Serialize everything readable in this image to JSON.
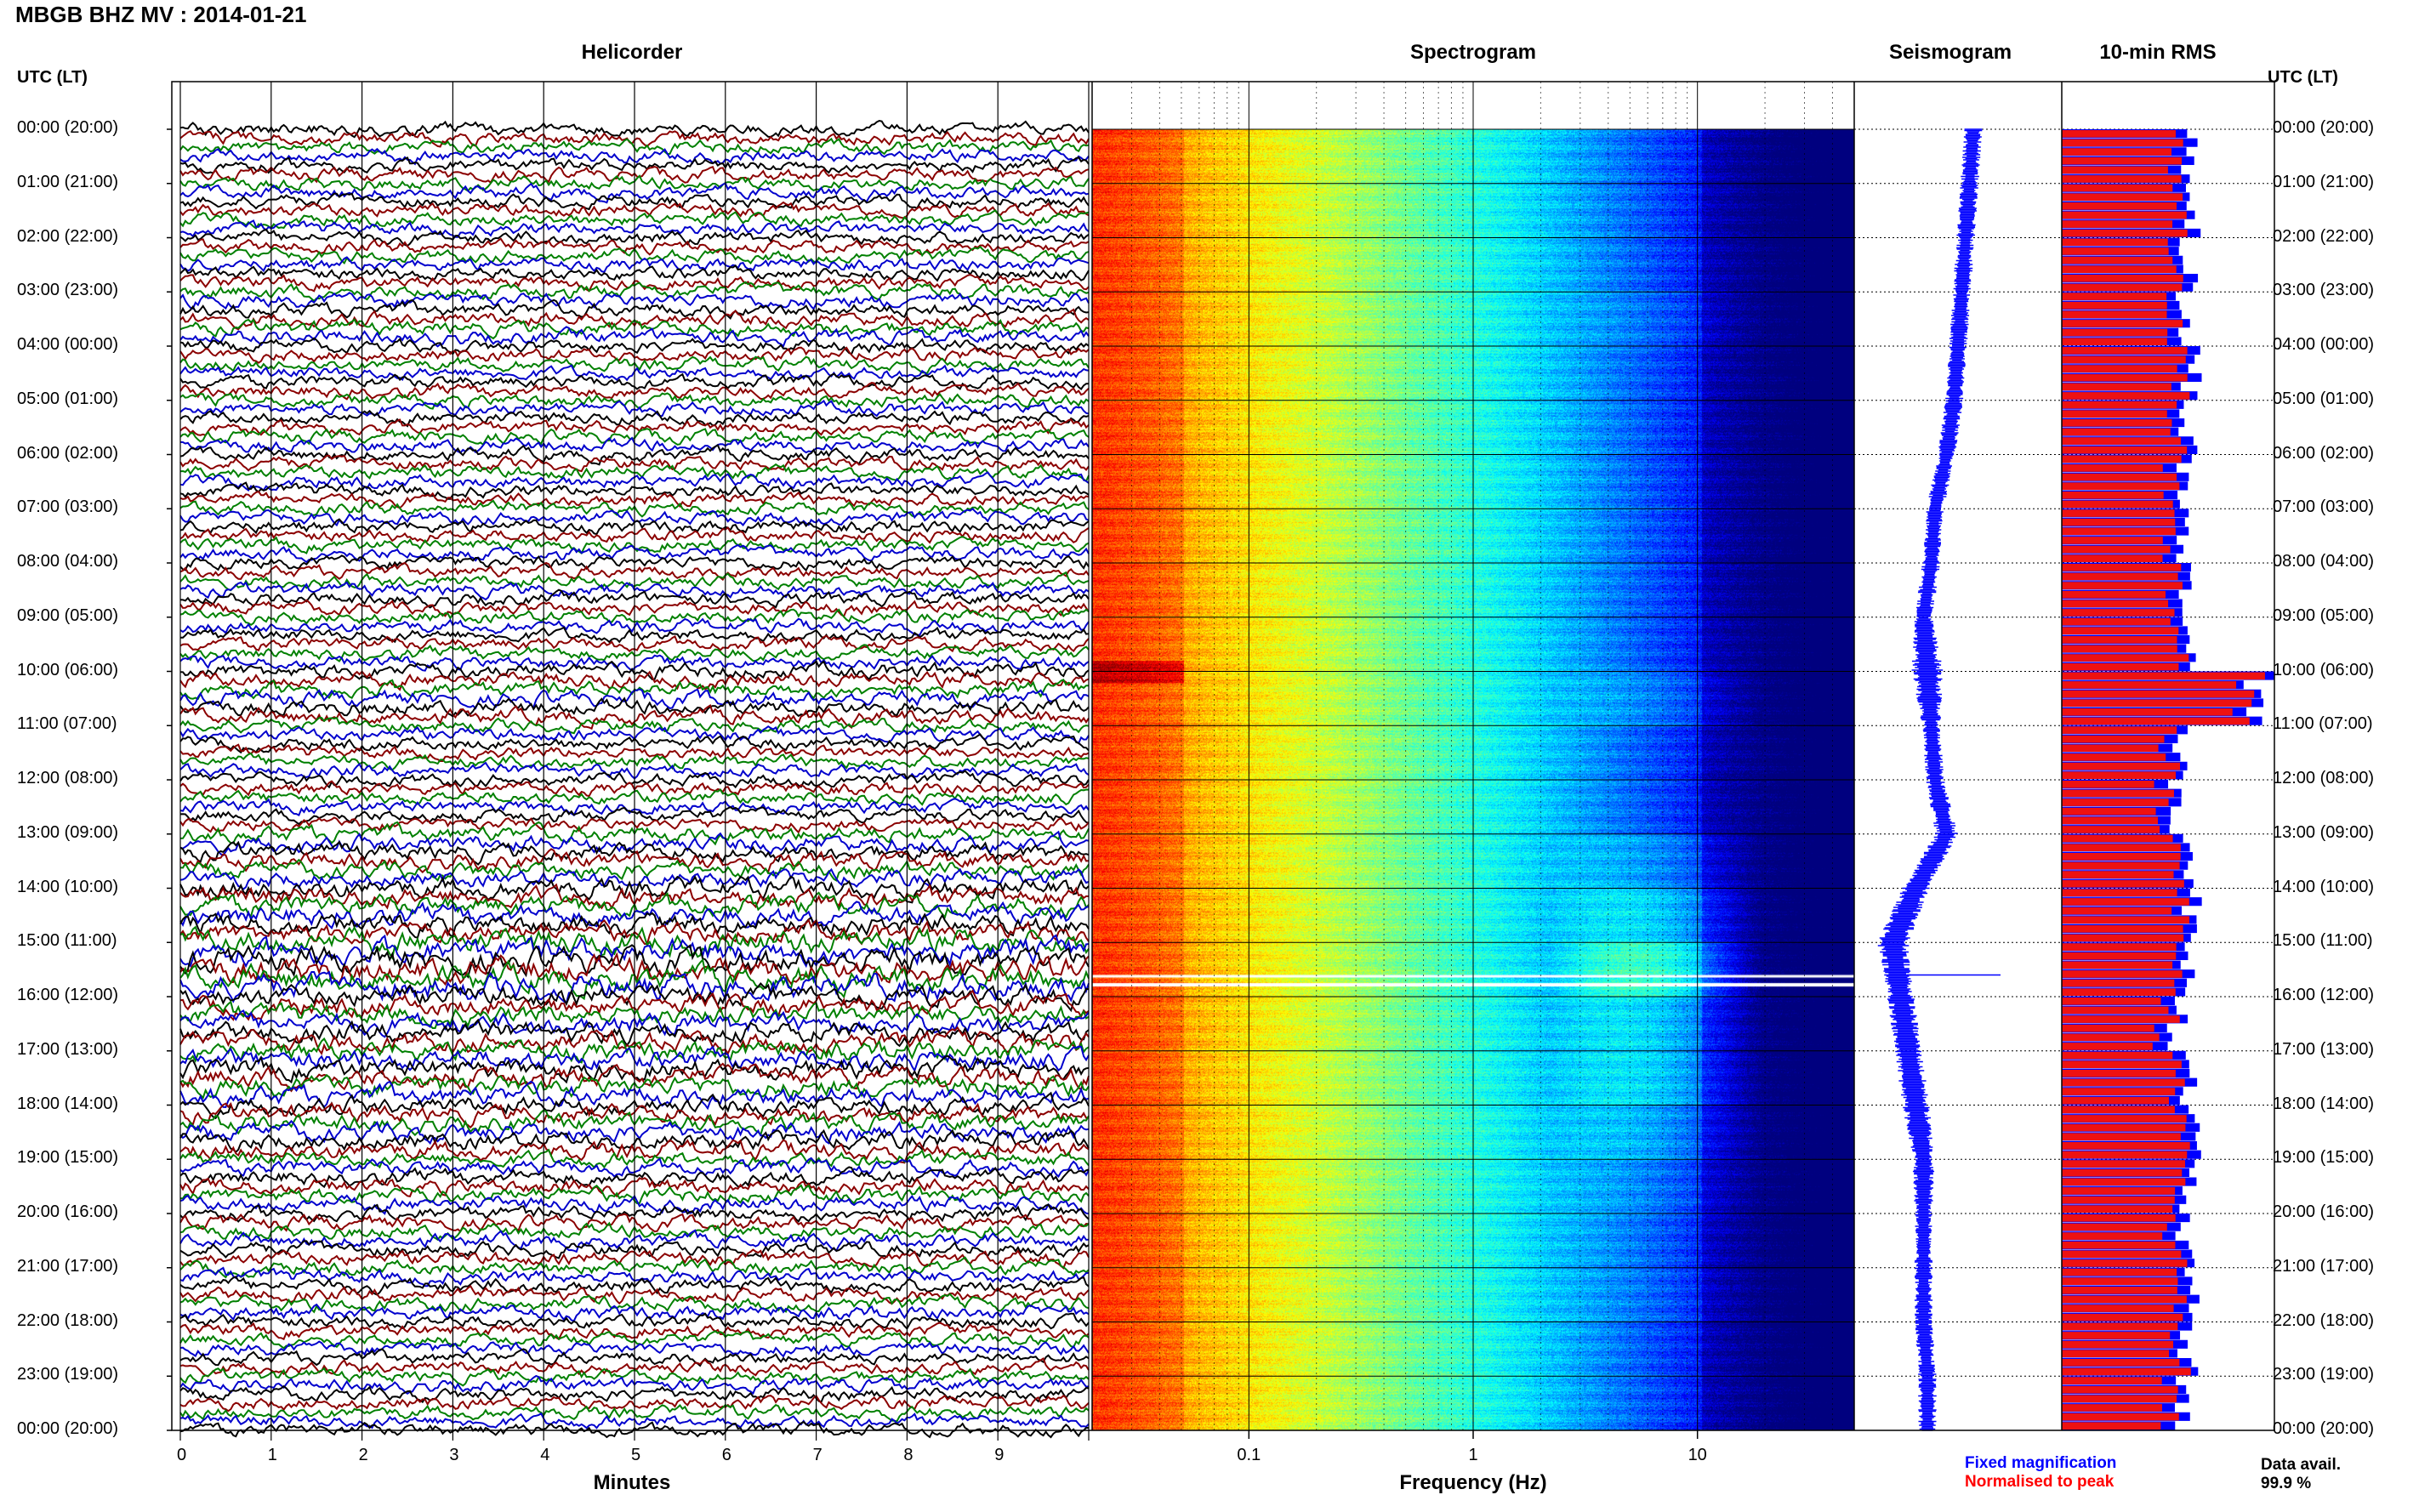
{
  "title": "MBGB BHZ MV : 2014-01-21",
  "panels": {
    "helicorder": "Helicorder",
    "spectrogram": "Spectrogram",
    "seismogram": "Seismogram",
    "rms": "10-min RMS"
  },
  "time_axis_label": "UTC (LT)",
  "x_labels": {
    "helicorder": "Minutes",
    "spectrogram": "Frequency (Hz)"
  },
  "legend": {
    "fixed": "Fixed magnification",
    "normalised": "Normalised to peak",
    "fixed_color": "#0000ff",
    "normalised_color": "#ff0000"
  },
  "data_avail": {
    "label": "Data avail.",
    "value": "99.9 %"
  },
  "colors": {
    "trace_cycle": [
      "#000000",
      "#8b0000",
      "#008000",
      "#0000cd"
    ],
    "seismogram": "#0000ff",
    "rms_fixed": "#0000ff",
    "rms_normalised": "#ee1111"
  },
  "chart_data": [
    {
      "type": "line",
      "name": "helicorder",
      "x_ticks": [
        "0",
        "1",
        "2",
        "3",
        "4",
        "5",
        "6",
        "7",
        "8",
        "9"
      ],
      "xlim": [
        0,
        10
      ],
      "row_minutes": 10,
      "rows": 144,
      "time_labels": [
        "00:00 (20:00)",
        "01:00 (21:00)",
        "02:00 (22:00)",
        "03:00 (23:00)",
        "04:00 (00:00)",
        "05:00 (01:00)",
        "06:00 (02:00)",
        "07:00 (03:00)",
        "08:00 (04:00)",
        "09:00 (05:00)",
        "10:00 (06:00)",
        "11:00 (07:00)",
        "12:00 (08:00)",
        "13:00 (09:00)",
        "14:00 (10:00)",
        "15:00 (11:00)",
        "16:00 (12:00)",
        "17:00 (13:00)",
        "18:00 (14:00)",
        "19:00 (15:00)",
        "20:00 (16:00)",
        "21:00 (17:00)",
        "22:00 (18:00)",
        "23:00 (19:00)",
        "00:00 (20:00)"
      ],
      "hourly_amplitude": [
        1.0,
        1.0,
        1.0,
        1.1,
        1.0,
        1.0,
        1.0,
        1.0,
        1.0,
        1.0,
        1.2,
        1.0,
        1.0,
        1.3,
        1.6,
        2.0,
        1.6,
        1.6,
        1.4,
        1.2,
        1.1,
        1.1,
        1.0,
        1.0
      ]
    },
    {
      "type": "heatmap",
      "name": "spectrogram",
      "x_scale": "log",
      "xlim": [
        0.02,
        50
      ],
      "x_ticks": [
        "0.1",
        "1",
        "10"
      ],
      "ylim_hours": [
        0,
        24
      ],
      "colormap": "jet",
      "gap_hours": [
        15.6,
        15.75
      ]
    },
    {
      "type": "line",
      "name": "seismogram",
      "hourly_offset": [
        0.2,
        0.15,
        0.1,
        0.05,
        0.0,
        -0.05,
        -0.15,
        -0.3,
        -0.35,
        -0.45,
        -0.4,
        -0.35,
        -0.3,
        -0.15,
        -0.55,
        -0.85,
        -0.75,
        -0.65,
        -0.55,
        -0.45,
        -0.45,
        -0.45,
        -0.45,
        -0.4
      ],
      "hourly_width": [
        0.2,
        0.2,
        0.2,
        0.2,
        0.2,
        0.2,
        0.2,
        0.2,
        0.2,
        0.2,
        0.35,
        0.2,
        0.2,
        0.25,
        0.3,
        0.35,
        0.3,
        0.3,
        0.3,
        0.25,
        0.2,
        0.2,
        0.2,
        0.2
      ]
    },
    {
      "type": "bar",
      "name": "10-min RMS",
      "unit": "relative to peak",
      "hourly_rms": [
        0.62,
        0.62,
        0.6,
        0.58,
        0.62,
        0.6,
        0.58,
        0.58,
        0.58,
        0.6,
        0.95,
        0.55,
        0.55,
        0.6,
        0.62,
        0.62,
        0.55,
        0.6,
        0.62,
        0.6,
        0.58,
        0.6,
        0.6,
        0.58
      ]
    }
  ]
}
